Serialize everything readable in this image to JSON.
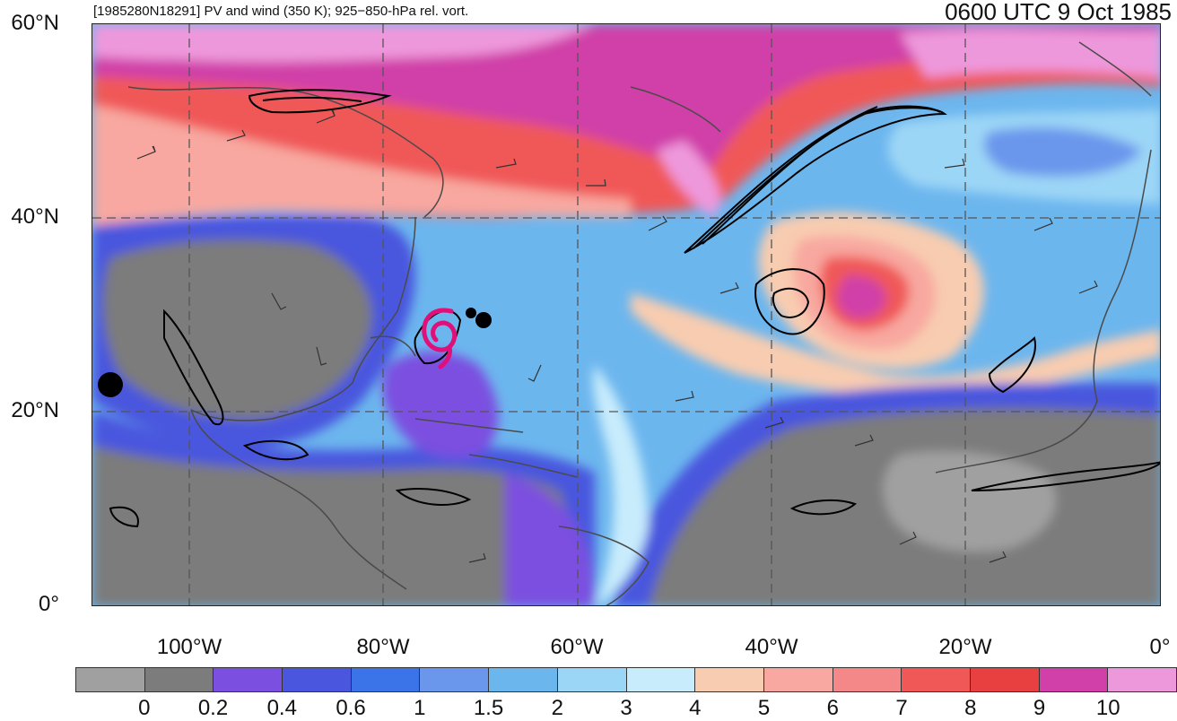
{
  "header": {
    "left_title": "[1985280N18291] PV and wind (350 K); 925−850-hPa rel. vort.",
    "right_title": "0600 UTC 9 Oct 1985"
  },
  "axes": {
    "lat_labels": [
      "60°N",
      "40°N",
      "20°N",
      "0°"
    ],
    "lon_labels": [
      "100°W",
      "80°W",
      "60°W",
      "40°W",
      "20°W",
      "0°"
    ]
  },
  "colorbar": {
    "colors": [
      "#a0a0a0",
      "#7c7c7c",
      "#7b50e0",
      "#4a56de",
      "#3a74e8",
      "#6a96ec",
      "#6cb6ee",
      "#9cd6f6",
      "#c8ecfc",
      "#f8ccb0",
      "#f8a8a0",
      "#f48888",
      "#f05858",
      "#e84040",
      "#d040a8",
      "#ee98dc"
    ],
    "labels": [
      "0",
      "0.2",
      "0.4",
      "0.6",
      "1",
      "1.5",
      "2",
      "3",
      "4",
      "5",
      "6",
      "7",
      "8",
      "9",
      "10"
    ]
  },
  "map": {
    "storm_marker_color": "#e0107a",
    "vorticity_contour_color": "#000000",
    "grid_color": "#555555",
    "coastline_color": "#4a4a4a"
  }
}
